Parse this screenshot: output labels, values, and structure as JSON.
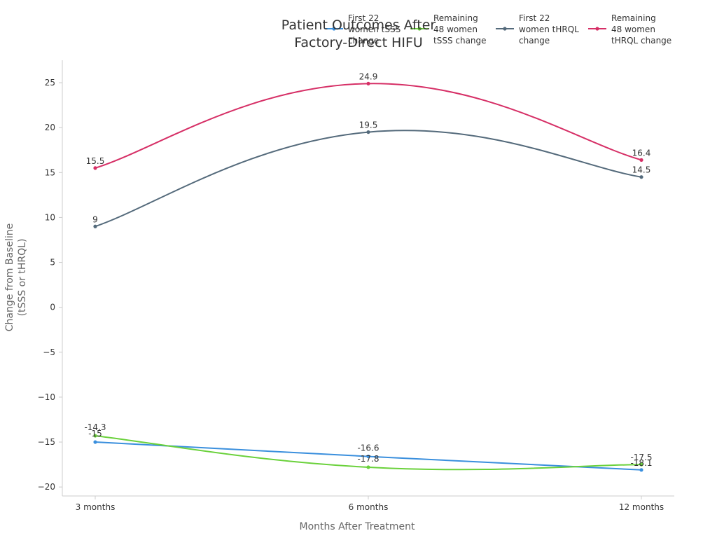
{
  "chart_data": {
    "type": "line",
    "title": "Patient Outcomes After Factory-Direct HIFU",
    "xlabel": "Months After Treatment",
    "ylabel": "Change from Baseline (tSSS or tHRQL)",
    "categories": [
      "3 months",
      "6 months",
      "12 months"
    ],
    "ylim": [
      -21,
      27.5
    ],
    "yticks": [
      -20,
      -15,
      -10,
      -5,
      0,
      5,
      10,
      15,
      20,
      25
    ],
    "grid": false,
    "legend_position": "top",
    "series": [
      {
        "name": "First 22 women tSSS change",
        "values": [
          -15,
          -16.6,
          -18.1
        ],
        "color": "#3a8fdd"
      },
      {
        "name": "Remaining 48 women tSSS change",
        "values": [
          -14.3,
          -17.8,
          -17.5
        ],
        "color": "#6ad13b"
      },
      {
        "name": "First 22 women tHRQL change",
        "values": [
          9,
          19.5,
          14.5
        ],
        "color": "#546a7b"
      },
      {
        "name": "Remaining 48 women tHRQL change",
        "values": [
          15.5,
          24.9,
          16.4
        ],
        "color": "#d62f66"
      }
    ]
  }
}
